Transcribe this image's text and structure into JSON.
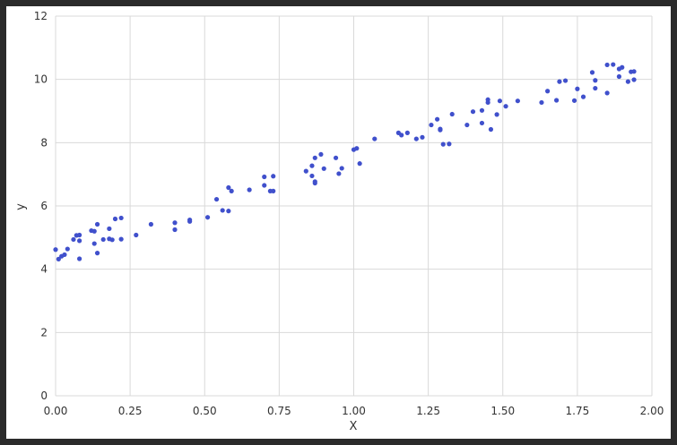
{
  "chart_data": {
    "type": "scatter",
    "title": "",
    "xlabel": "X",
    "ylabel": "y",
    "xlim": [
      0,
      2
    ],
    "ylim": [
      0,
      12
    ],
    "xticks": [
      "0.00",
      "0.25",
      "0.50",
      "0.75",
      "1.00",
      "1.25",
      "1.50",
      "1.75",
      "2.00"
    ],
    "yticks": [
      "0",
      "2",
      "4",
      "6",
      "8",
      "10",
      "12"
    ],
    "grid": true,
    "marker_color": "#4050cc",
    "points": [
      [
        0.0,
        4.62
      ],
      [
        0.01,
        4.32
      ],
      [
        0.02,
        4.41
      ],
      [
        0.03,
        4.46
      ],
      [
        0.04,
        4.64
      ],
      [
        0.06,
        4.94
      ],
      [
        0.07,
        5.07
      ],
      [
        0.08,
        5.08
      ],
      [
        0.08,
        4.9
      ],
      [
        0.08,
        4.33
      ],
      [
        0.12,
        5.22
      ],
      [
        0.13,
        5.2
      ],
      [
        0.13,
        4.81
      ],
      [
        0.14,
        5.42
      ],
      [
        0.14,
        4.51
      ],
      [
        0.16,
        4.94
      ],
      [
        0.18,
        4.96
      ],
      [
        0.18,
        5.28
      ],
      [
        0.19,
        4.93
      ],
      [
        0.2,
        5.59
      ],
      [
        0.22,
        5.62
      ],
      [
        0.22,
        4.95
      ],
      [
        0.27,
        5.08
      ],
      [
        0.32,
        5.42
      ],
      [
        0.4,
        5.47
      ],
      [
        0.4,
        5.25
      ],
      [
        0.45,
        5.56
      ],
      [
        0.45,
        5.51
      ],
      [
        0.51,
        5.64
      ],
      [
        0.54,
        6.21
      ],
      [
        0.56,
        5.86
      ],
      [
        0.58,
        5.84
      ],
      [
        0.58,
        6.58
      ],
      [
        0.59,
        6.47
      ],
      [
        0.65,
        6.51
      ],
      [
        0.7,
        6.92
      ],
      [
        0.7,
        6.65
      ],
      [
        0.72,
        6.47
      ],
      [
        0.73,
        6.47
      ],
      [
        0.73,
        6.94
      ],
      [
        0.84,
        7.1
      ],
      [
        0.86,
        6.95
      ],
      [
        0.86,
        7.27
      ],
      [
        0.87,
        6.77
      ],
      [
        0.87,
        6.72
      ],
      [
        0.87,
        7.52
      ],
      [
        0.89,
        7.63
      ],
      [
        0.9,
        7.18
      ],
      [
        0.94,
        7.52
      ],
      [
        0.95,
        7.02
      ],
      [
        0.96,
        7.19
      ],
      [
        1.0,
        7.78
      ],
      [
        1.01,
        7.82
      ],
      [
        1.02,
        7.34
      ],
      [
        1.07,
        8.12
      ],
      [
        1.15,
        8.31
      ],
      [
        1.16,
        8.24
      ],
      [
        1.18,
        8.31
      ],
      [
        1.21,
        8.12
      ],
      [
        1.23,
        8.17
      ],
      [
        1.26,
        8.56
      ],
      [
        1.28,
        8.74
      ],
      [
        1.29,
        8.43
      ],
      [
        1.29,
        8.4
      ],
      [
        1.3,
        7.95
      ],
      [
        1.32,
        7.96
      ],
      [
        1.33,
        8.9
      ],
      [
        1.38,
        8.56
      ],
      [
        1.4,
        8.98
      ],
      [
        1.43,
        8.62
      ],
      [
        1.43,
        9.02
      ],
      [
        1.45,
        9.27
      ],
      [
        1.45,
        9.36
      ],
      [
        1.46,
        8.42
      ],
      [
        1.48,
        8.89
      ],
      [
        1.49,
        9.32
      ],
      [
        1.51,
        9.15
      ],
      [
        1.55,
        9.32
      ],
      [
        1.63,
        9.27
      ],
      [
        1.65,
        9.63
      ],
      [
        1.68,
        9.34
      ],
      [
        1.69,
        9.93
      ],
      [
        1.71,
        9.96
      ],
      [
        1.74,
        9.33
      ],
      [
        1.75,
        9.7
      ],
      [
        1.77,
        9.45
      ],
      [
        1.8,
        10.22
      ],
      [
        1.81,
        9.97
      ],
      [
        1.81,
        9.72
      ],
      [
        1.85,
        9.57
      ],
      [
        1.85,
        10.46
      ],
      [
        1.87,
        10.47
      ],
      [
        1.89,
        10.33
      ],
      [
        1.89,
        10.09
      ],
      [
        1.9,
        10.38
      ],
      [
        1.92,
        9.93
      ],
      [
        1.93,
        10.24
      ],
      [
        1.94,
        10.25
      ],
      [
        1.94,
        9.99
      ]
    ]
  }
}
